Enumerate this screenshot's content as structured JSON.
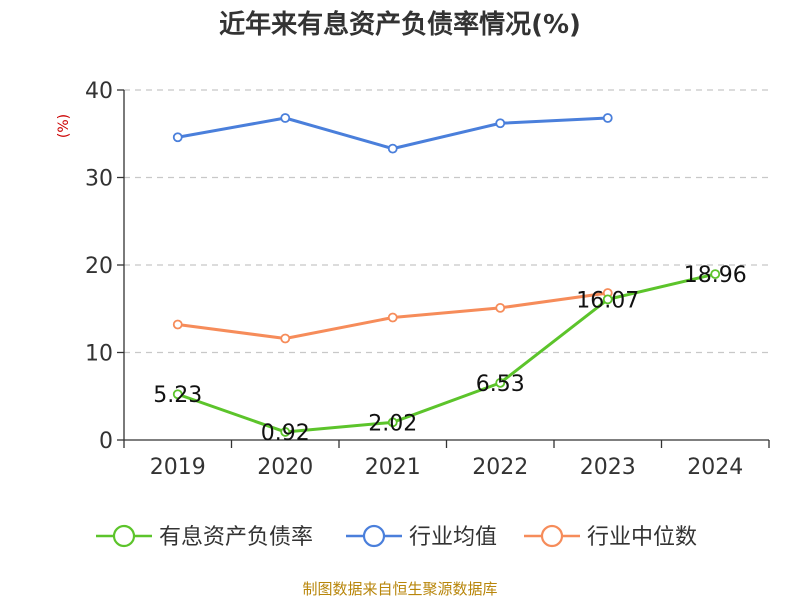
{
  "chart_data": {
    "type": "line",
    "title": "近年来有息资产负债率情况(%)",
    "ylabel": "(%)",
    "xlabel": "",
    "categories": [
      "2019",
      "2020",
      "2021",
      "2022",
      "2023",
      "2024"
    ],
    "ylim": [
      0,
      40
    ],
    "yticks": [
      0,
      10,
      20,
      30,
      40
    ],
    "grid": true,
    "legend_position": "bottom",
    "series": [
      {
        "name": "有息资产负债率",
        "color": "#5cc42b",
        "values": [
          5.23,
          0.92,
          2.02,
          6.53,
          16.07,
          18.96
        ],
        "labels": [
          "5.23",
          "0.92",
          "2.02",
          "6.53",
          "16.07",
          "18.96"
        ]
      },
      {
        "name": "行业均值",
        "color": "#4a7fdb",
        "values": [
          34.6,
          36.8,
          33.3,
          36.2,
          36.8,
          null
        ]
      },
      {
        "name": "行业中位数",
        "color": "#f68c5a",
        "values": [
          13.2,
          11.6,
          14.0,
          15.1,
          16.8,
          null
        ]
      }
    ]
  },
  "source": "制图数据来自恒生聚源数据库"
}
